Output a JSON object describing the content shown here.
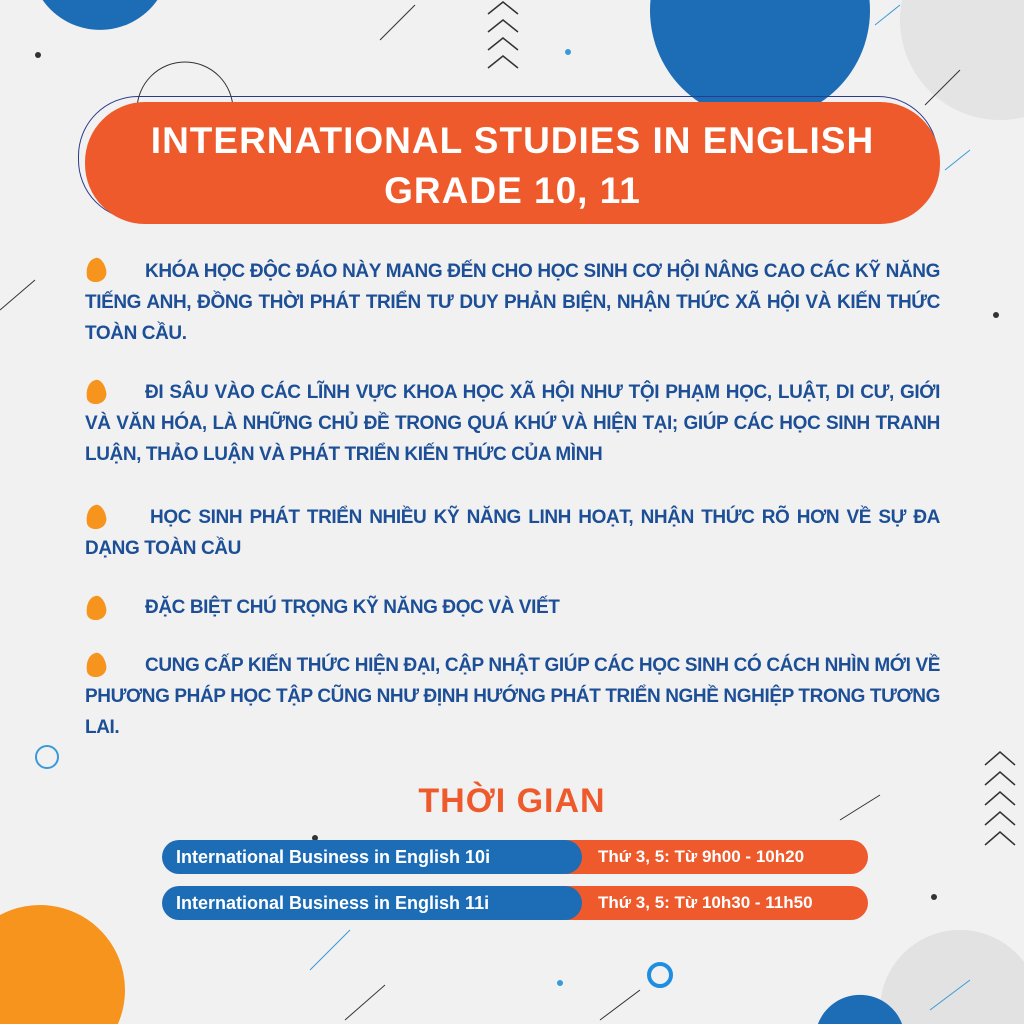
{
  "colors": {
    "accent_orange": "#ee5a2b",
    "bullet_orange": "#f7941d",
    "text_blue": "#1d4f97",
    "pill_blue": "#1d6db6",
    "background": "#f1f1f1"
  },
  "header": {
    "title_line1": "INTERNATIONAL STUDIES IN ENGLISH",
    "title_line2": "GRADE 10, 11"
  },
  "bullets": [
    {
      "icon": "bullet-blob-icon",
      "text": "KHÓA HỌC ĐỘC ĐÁO NÀY MANG ĐẾN CHO HỌC SINH CƠ HỘI NÂNG CAO CÁC KỸ NĂNG TIẾNG ANH, ĐỒNG THỜI PHÁT TRIỂN TƯ DUY PHẢN BIỆN, NHẬN THỨC XÃ HỘI VÀ KIẾN THỨC TOÀN CẦU."
    },
    {
      "icon": "bullet-blob-icon",
      "text": "ĐI SÂU VÀO CÁC LĨNH VỰC KHOA HỌC XÃ HỘI NHƯ TỘI PHẠM HỌC, LUẬT, DI CƯ, GIỚI VÀ VĂN HÓA, LÀ NHỮNG CHỦ ĐỀ TRONG QUÁ KHỨ VÀ HIỆN TẠI; GIÚP CÁC HỌC SINH TRANH LUẬN, THẢO LUẬN VÀ PHÁT TRIỂN KIẾN THỨC CỦA MÌNH"
    },
    {
      "icon": "bullet-blob-icon",
      "text": "HỌC SINH PHÁT TRIỂN NHIỀU KỸ NĂNG LINH HOẠT, NHẬN THỨC RÕ HƠN VỀ SỰ ĐA DẠNG TOÀN CẦU"
    },
    {
      "icon": "bullet-blob-icon",
      "text": "ĐẶC BIỆT CHÚ TRỌNG KỸ NĂNG ĐỌC VÀ VIẾT"
    },
    {
      "icon": "bullet-blob-icon",
      "text": "CUNG CẤP KIẾN THỨC HIỆN ĐẠI, CẬP NHẬT GIÚP CÁC HỌC SINH CÓ CÁCH NHÌN MỚI VỀ PHƯƠNG PHÁP HỌC TẬP CŨNG NHƯ ĐỊNH HƯỚNG PHÁT TRIỂN NGHỀ NGHIỆP TRONG TƯƠNG LAI."
    }
  ],
  "schedule": {
    "heading": "THỜI GIAN",
    "rows": [
      {
        "course": "International Business in English 10i",
        "time": "Thứ 3, 5: Từ 9h00 - 10h20"
      },
      {
        "course": "International Business in English 11i",
        "time": "Thứ 3, 5:  Từ 10h30 - 11h50"
      }
    ]
  }
}
